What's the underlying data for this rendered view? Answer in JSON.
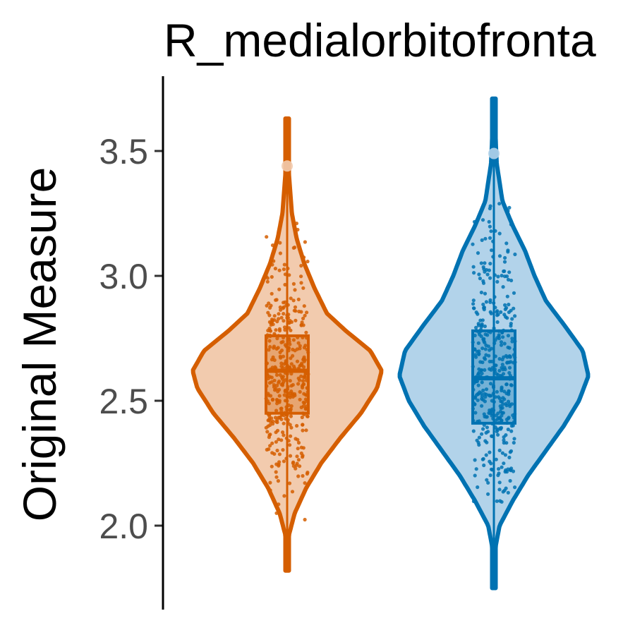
{
  "chart_data": {
    "type": "violin",
    "title": "R_medialorbitofronta",
    "xlabel": "",
    "ylabel": "Original Measure",
    "ylim": [
      1.68,
      3.8
    ],
    "y_ticks": [
      2.0,
      2.5,
      3.0,
      3.5
    ],
    "y_tick_labels": [
      "2.0",
      "2.5",
      "3.0",
      "3.5"
    ],
    "grid": false,
    "legend": "none",
    "groups": [
      {
        "color": "#d55e00",
        "fill": "#f2cbae",
        "min": 1.82,
        "max": 3.63,
        "q1": 2.45,
        "median": 2.62,
        "q3": 2.76,
        "whisker_low": 2.0,
        "whisker_high": 3.22,
        "outliers": [
          3.44
        ],
        "density_profile": [
          [
            1.82,
            0.0
          ],
          [
            1.95,
            0.01
          ],
          [
            2.05,
            0.08
          ],
          [
            2.15,
            0.2
          ],
          [
            2.25,
            0.36
          ],
          [
            2.35,
            0.56
          ],
          [
            2.45,
            0.78
          ],
          [
            2.55,
            0.95
          ],
          [
            2.62,
            1.0
          ],
          [
            2.7,
            0.88
          ],
          [
            2.78,
            0.62
          ],
          [
            2.85,
            0.42
          ],
          [
            2.95,
            0.29
          ],
          [
            3.05,
            0.18
          ],
          [
            3.15,
            0.1
          ],
          [
            3.25,
            0.05
          ],
          [
            3.4,
            0.02
          ],
          [
            3.63,
            0.0
          ]
        ]
      },
      {
        "color": "#0072b2",
        "fill": "#b2d3ea",
        "min": 1.75,
        "max": 3.71,
        "q1": 2.41,
        "median": 2.59,
        "q3": 2.78,
        "whisker_low": 2.08,
        "whisker_high": 3.3,
        "outliers": [
          3.49
        ],
        "density_profile": [
          [
            1.75,
            0.0
          ],
          [
            1.9,
            0.01
          ],
          [
            2.0,
            0.06
          ],
          [
            2.1,
            0.2
          ],
          [
            2.2,
            0.36
          ],
          [
            2.3,
            0.55
          ],
          [
            2.4,
            0.74
          ],
          [
            2.5,
            0.9
          ],
          [
            2.6,
            1.0
          ],
          [
            2.7,
            0.94
          ],
          [
            2.8,
            0.75
          ],
          [
            2.9,
            0.55
          ],
          [
            3.0,
            0.43
          ],
          [
            3.1,
            0.33
          ],
          [
            3.2,
            0.2
          ],
          [
            3.3,
            0.09
          ],
          [
            3.45,
            0.03
          ],
          [
            3.71,
            0.0
          ]
        ]
      }
    ]
  }
}
